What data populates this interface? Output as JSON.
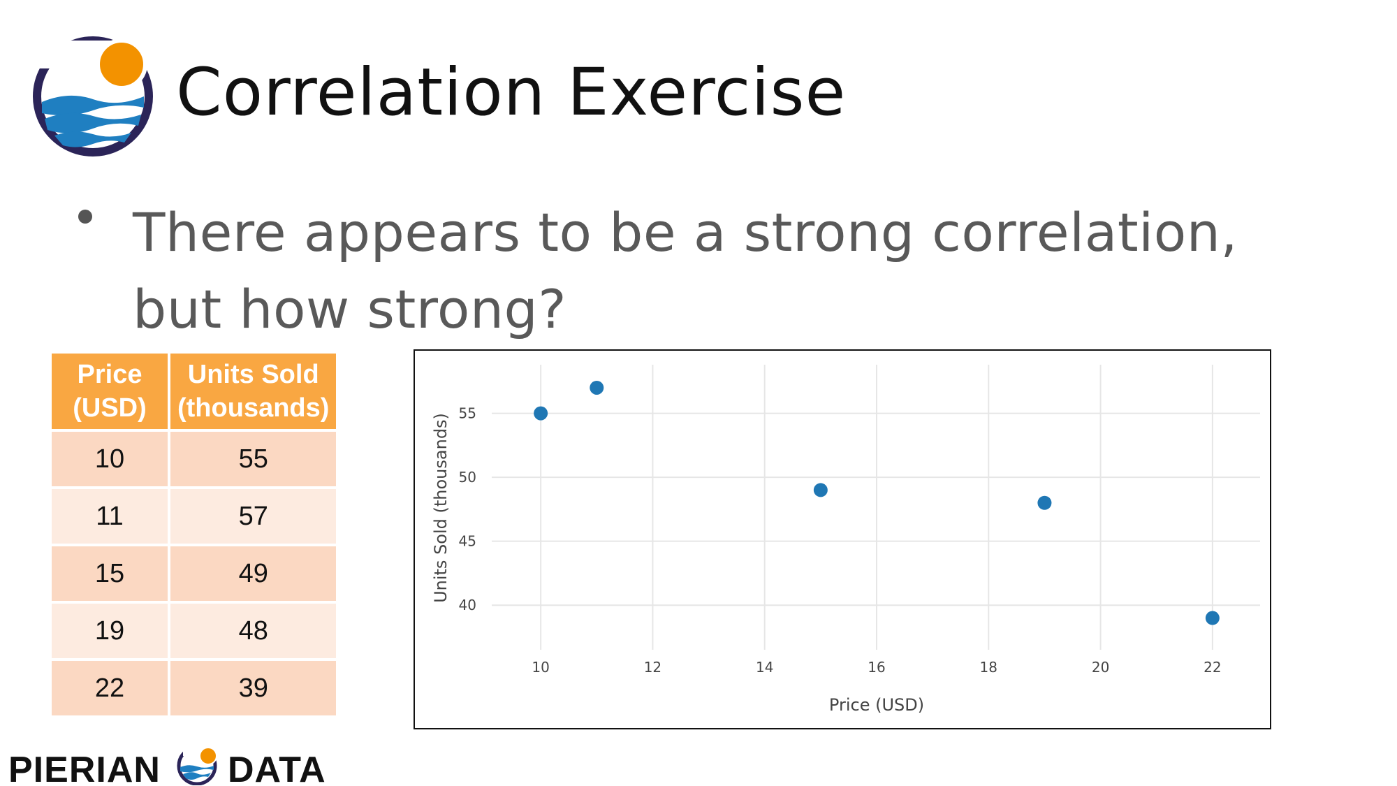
{
  "title": "Correlation Exercise",
  "bullet": "There appears to be a strong correlation, but how strong?",
  "table": {
    "headers": [
      "Price (USD)",
      "Units Sold (thousands)"
    ],
    "rows": [
      [
        "10",
        "55"
      ],
      [
        "11",
        "57"
      ],
      [
        "15",
        "49"
      ],
      [
        "19",
        "48"
      ],
      [
        "22",
        "39"
      ]
    ]
  },
  "chart_data": {
    "type": "scatter",
    "x": [
      10,
      11,
      15,
      19,
      22
    ],
    "y": [
      55,
      57,
      49,
      48,
      39
    ],
    "xlabel": "Price (USD)",
    "ylabel": "Units Sold (thousands)",
    "xlim": [
      9,
      23
    ],
    "ylim": [
      37.5,
      58.8
    ],
    "xticks": [
      10,
      12,
      14,
      16,
      18,
      20,
      22
    ],
    "yticks": [
      40,
      45,
      50,
      55
    ],
    "grid": true,
    "marker_color": "#1f77b4"
  },
  "footer": {
    "brand_left": "PIERIAN",
    "brand_right": "DATA"
  },
  "colors": {
    "header_orange": "#f9a742",
    "row_odd": "#fbd8c2",
    "row_even": "#fdebe0",
    "logo_navy": "#2b2458",
    "logo_sun": "#f39200",
    "logo_wave": "#1f7fc1"
  }
}
